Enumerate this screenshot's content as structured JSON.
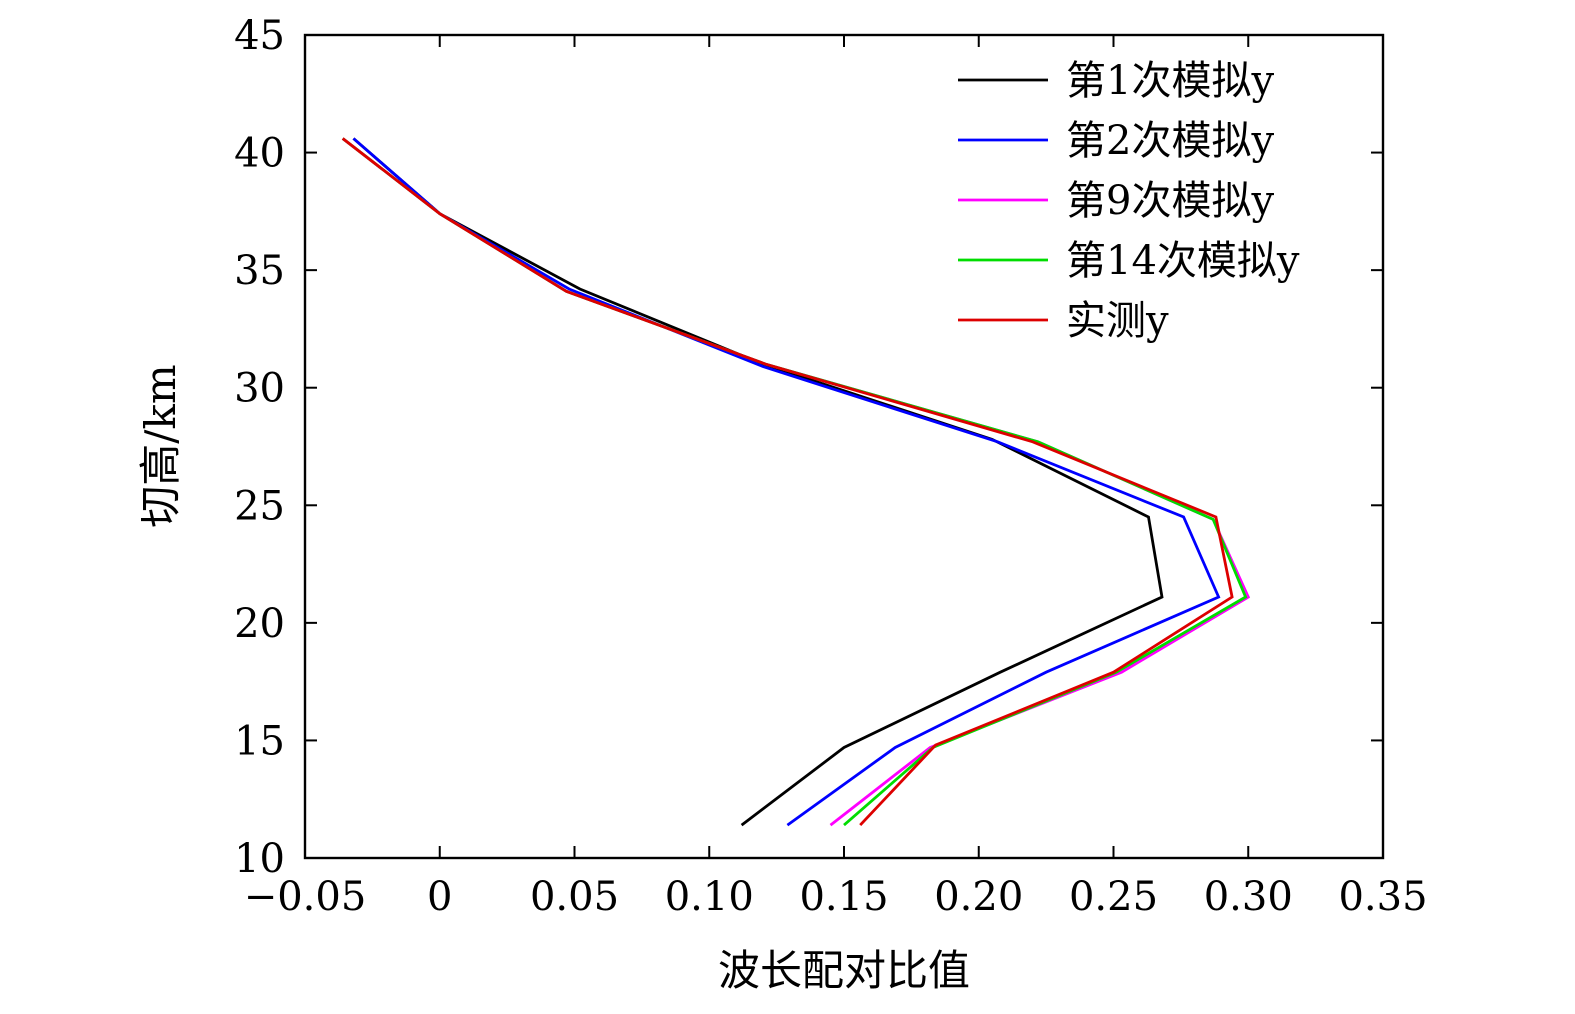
{
  "chart_data": {
    "type": "line",
    "xlabel": "波长配对比值",
    "ylabel": "切高/km",
    "xlim": [
      -0.05,
      0.35
    ],
    "ylim": [
      10,
      45
    ],
    "xticks": [
      {
        "value": -0.05,
        "label": "−0.05"
      },
      {
        "value": 0,
        "label": "0"
      },
      {
        "value": 0.05,
        "label": "0.05"
      },
      {
        "value": 0.1,
        "label": "0.10"
      },
      {
        "value": 0.15,
        "label": "0.15"
      },
      {
        "value": 0.2,
        "label": "0.20"
      },
      {
        "value": 0.25,
        "label": "0.25"
      },
      {
        "value": 0.3,
        "label": "0.30"
      },
      {
        "value": 0.35,
        "label": "0.35"
      }
    ],
    "yticks": [
      {
        "value": 10,
        "label": "10"
      },
      {
        "value": 15,
        "label": "15"
      },
      {
        "value": 20,
        "label": "20"
      },
      {
        "value": 25,
        "label": "25"
      },
      {
        "value": 30,
        "label": "30"
      },
      {
        "value": 35,
        "label": "35"
      },
      {
        "value": 40,
        "label": "40"
      },
      {
        "value": 45,
        "label": "45"
      }
    ],
    "grid": false,
    "legend_position": "top-right",
    "series": [
      {
        "name": "第1次模拟y",
        "color": "#000000",
        "points": [
          [
            -0.032,
            40.6
          ],
          [
            0.0,
            37.4
          ],
          [
            0.052,
            34.2
          ],
          [
            0.12,
            31.0
          ],
          [
            0.205,
            27.8
          ],
          [
            0.263,
            24.5
          ],
          [
            0.268,
            21.1
          ],
          [
            0.208,
            17.9
          ],
          [
            0.15,
            14.7
          ],
          [
            0.112,
            11.4
          ]
        ]
      },
      {
        "name": "第2次模拟y",
        "color": "#0000ff",
        "points": [
          [
            -0.032,
            40.6
          ],
          [
            0.0,
            37.4
          ],
          [
            0.048,
            34.2
          ],
          [
            0.12,
            30.9
          ],
          [
            0.207,
            27.7
          ],
          [
            0.276,
            24.5
          ],
          [
            0.289,
            21.1
          ],
          [
            0.225,
            17.9
          ],
          [
            0.169,
            14.7
          ],
          [
            0.129,
            11.4
          ]
        ]
      },
      {
        "name": "第9次模拟y",
        "color": "#ff00ff",
        "points": [
          [
            -0.036,
            40.6
          ],
          [
            0.0,
            37.4
          ],
          [
            0.047,
            34.1
          ],
          [
            0.121,
            31.0
          ],
          [
            0.222,
            27.7
          ],
          [
            0.287,
            24.4
          ],
          [
            0.3,
            21.1
          ],
          [
            0.253,
            17.9
          ],
          [
            0.182,
            14.7
          ],
          [
            0.145,
            11.4
          ]
        ]
      },
      {
        "name": "第14次模拟y",
        "color": "#00dd00",
        "points": [
          [
            -0.036,
            40.6
          ],
          [
            0.0,
            37.4
          ],
          [
            0.047,
            34.1
          ],
          [
            0.121,
            31.0
          ],
          [
            0.222,
            27.7
          ],
          [
            0.287,
            24.4
          ],
          [
            0.299,
            21.1
          ],
          [
            0.251,
            17.9
          ],
          [
            0.183,
            14.7
          ],
          [
            0.15,
            11.4
          ]
        ]
      },
      {
        "name": "实测y",
        "color": "#dd0000",
        "points": [
          [
            -0.036,
            40.6
          ],
          [
            0.0,
            37.4
          ],
          [
            0.047,
            34.1
          ],
          [
            0.121,
            31.0
          ],
          [
            0.22,
            27.7
          ],
          [
            0.288,
            24.5
          ],
          [
            0.294,
            21.1
          ],
          [
            0.25,
            17.9
          ],
          [
            0.184,
            14.8
          ],
          [
            0.156,
            11.4
          ]
        ]
      }
    ]
  }
}
